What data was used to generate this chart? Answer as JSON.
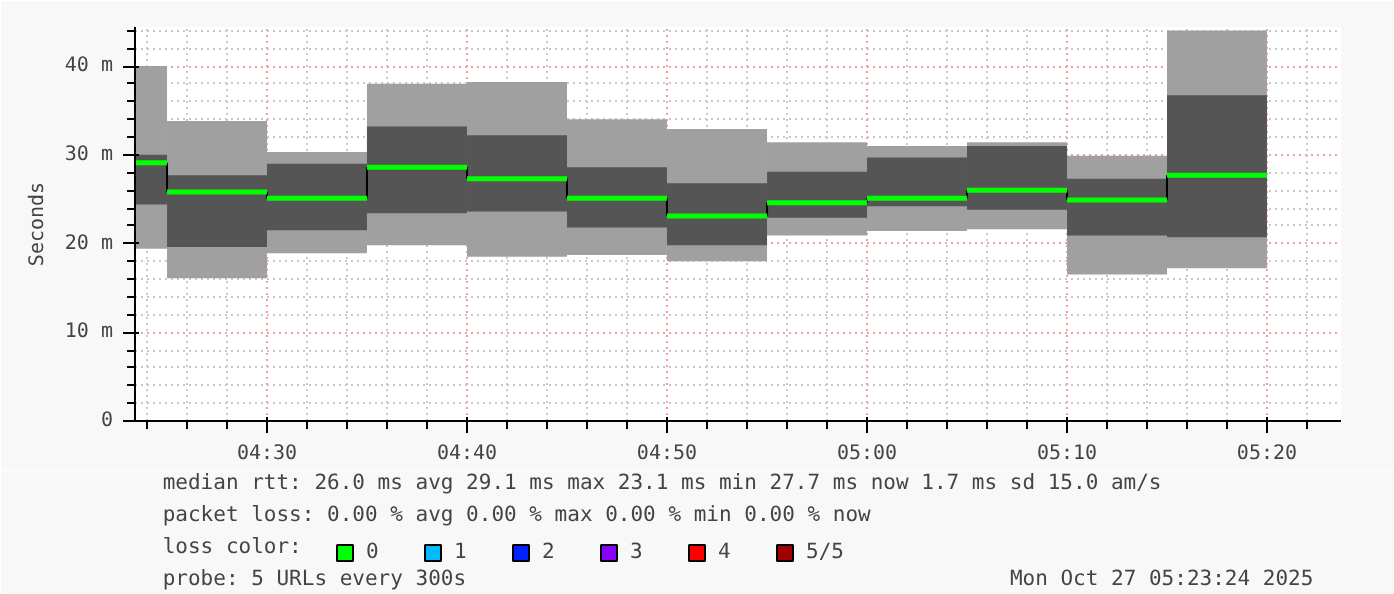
{
  "chart_data": {
    "type": "box",
    "ylabel": "Seconds",
    "x": [
      4.39,
      4.4167,
      4.5,
      4.5833,
      4.6667,
      4.75,
      4.8333,
      4.9167,
      5.0,
      5.0833,
      5.1667,
      5.25
    ],
    "xlim": [
      4.39,
      5.395
    ],
    "xticks": [
      {
        "value": 4.5,
        "label": "04:30"
      },
      {
        "value": 4.6667,
        "label": "04:40"
      },
      {
        "value": 4.8333,
        "label": "04:50"
      },
      {
        "value": 5.0,
        "label": "05:00"
      },
      {
        "value": 5.1667,
        "label": "05:10"
      },
      {
        "value": 5.3333,
        "label": "05:20"
      }
    ],
    "ylim": [
      0,
      44.4
    ],
    "yticks": [
      0,
      {
        "value": 10,
        "label": "10 m"
      },
      {
        "value": 20,
        "label": "20 m"
      },
      {
        "value": 30,
        "label": "30 m"
      },
      {
        "value": 40,
        "label": "40 m"
      }
    ],
    "grid": true,
    "legend": "bottom",
    "legend_title": "loss color:",
    "boxes": [
      {
        "low": 19.4,
        "q1": 24.4,
        "median": 29.1,
        "q3": 30.0,
        "high": 40.0
      },
      {
        "low": 16.1,
        "q1": 19.6,
        "median": 25.8,
        "q3": 27.7,
        "high": 33.8
      },
      {
        "low": 18.9,
        "q1": 21.5,
        "median": 25.1,
        "q3": 29.0,
        "high": 30.3
      },
      {
        "low": 19.8,
        "q1": 23.4,
        "median": 28.6,
        "q3": 33.2,
        "high": 38.0
      },
      {
        "low": 18.5,
        "q1": 23.6,
        "median": 27.3,
        "q3": 32.2,
        "high": 38.2
      },
      {
        "low": 18.7,
        "q1": 21.8,
        "median": 25.1,
        "q3": 28.6,
        "high": 34.0
      },
      {
        "low": 18.0,
        "q1": 19.8,
        "median": 23.1,
        "q3": 26.8,
        "high": 32.9
      },
      {
        "low": 20.9,
        "q1": 22.9,
        "median": 24.6,
        "q3": 28.1,
        "high": 31.4
      },
      {
        "low": 21.4,
        "q1": 24.2,
        "median": 25.1,
        "q3": 29.7,
        "high": 31.0
      },
      {
        "low": 21.6,
        "q1": 23.8,
        "median": 26.0,
        "q3": 31.0,
        "high": 31.4
      },
      {
        "low": 16.5,
        "q1": 20.9,
        "median": 24.9,
        "q3": 27.3,
        "high": 29.9
      },
      {
        "low": 17.2,
        "q1": 20.7,
        "median": 27.7,
        "q3": 36.7,
        "high": 44.0
      }
    ],
    "series": [
      {
        "name": "0",
        "color": "#00ff00",
        "type": "step",
        "values": [
          null,
          null,
          null,
          null,
          null,
          null,
          null,
          null,
          null,
          null,
          null,
          null
        ]
      },
      {
        "name": "1",
        "color": "#00bbff",
        "type": "step",
        "values": [
          null,
          null,
          null,
          null,
          null,
          null,
          null,
          null,
          null,
          null,
          null,
          null
        ]
      },
      {
        "name": "2",
        "color": "#0022ff",
        "type": "step",
        "values": [
          null,
          null,
          null,
          null,
          null,
          null,
          null,
          null,
          null,
          null,
          null,
          null
        ]
      },
      {
        "name": "3",
        "color": "#8a00ff",
        "type": "step",
        "values": [
          null,
          null,
          null,
          null,
          null,
          null,
          null,
          null,
          null,
          null,
          null,
          null
        ]
      },
      {
        "name": "4",
        "color": "#ff0000",
        "type": "step",
        "values": [
          null,
          null,
          null,
          null,
          null,
          null,
          null,
          null,
          null,
          null,
          null,
          null
        ]
      },
      {
        "name": "5/5",
        "color": "#a10000",
        "type": "step",
        "values": [
          null,
          null,
          null,
          null,
          null,
          null,
          null,
          null,
          null,
          null,
          null,
          null
        ]
      }
    ],
    "annotations": [
      "median rtt:  26.0 ms avg  29.1 ms max  23.1 ms min  27.7 ms now  1.7 ms sd  15.0   am/s",
      "packet loss: 0.00 % avg  0.00 % max  0.00 % min  0.00 % now",
      "probe:       5 URLs every 300s",
      "Mon Oct 27 05:23:24 2025"
    ]
  }
}
